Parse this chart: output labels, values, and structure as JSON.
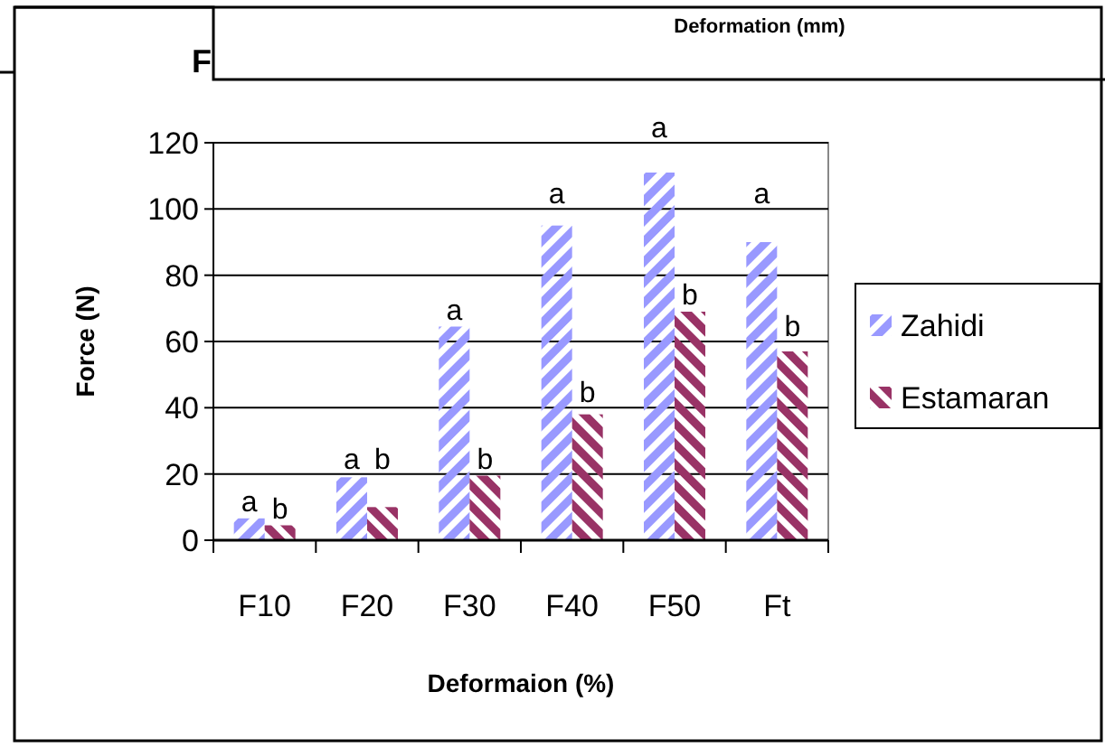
{
  "chart_data": {
    "type": "bar",
    "xlabel": "Deformaion (%)",
    "ylabel": "Force (N)",
    "categories": [
      "F10",
      "F20",
      "F30",
      "F40",
      "F50",
      "Ft"
    ],
    "series": [
      {
        "name": "Zahidi",
        "color": "#9999ff",
        "values": [
          6.6,
          19,
          64.5,
          95,
          111,
          90
        ],
        "value_labels": [
          "a",
          "a",
          "a",
          "a",
          "a",
          "a"
        ]
      },
      {
        "name": "Estamaran",
        "color": "#993366",
        "values": [
          4.5,
          10,
          19.5,
          38,
          69,
          57
        ],
        "value_labels": [
          "b",
          "b",
          "b",
          "b",
          "b",
          "b"
        ]
      }
    ],
    "ylim": [
      0,
      120
    ],
    "yticks": [
      0,
      20,
      40,
      60,
      80,
      100,
      120
    ],
    "grid": "y",
    "legend": "right",
    "annotations": [
      "Deformation (mm)",
      "F"
    ]
  }
}
